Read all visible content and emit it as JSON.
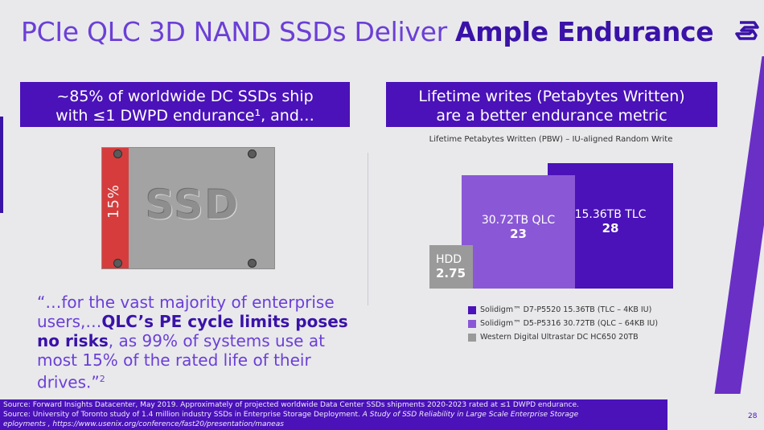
{
  "title": {
    "light": "PCIe QLC 3D NAND SSDs Deliver ",
    "bold": "Ample Endurance"
  },
  "left_header": {
    "line1": "~85% of worldwide DC SSDs ship",
    "line2": "with ≤1 DWPD endurance¹, and…"
  },
  "right_header": {
    "line1": "Lifetime writes (Petabytes Written)",
    "line2": "are a better endurance metric"
  },
  "ssd_illustration": {
    "label": "SSD",
    "percent": "15%"
  },
  "quote": {
    "part1": "“…for the vast majority of enterprise users,…",
    "emph1": "QLC’s PE cycle limits poses no risks",
    "part2": ", as 99% of systems use at most 15% of the rated life of their drives.”",
    "sup": "2"
  },
  "chart_data": {
    "type": "bar",
    "title": "Lifetime Petabytes Written (PBW) – IU-aligned Random Write",
    "series": [
      {
        "name": "15.36TB TLC",
        "value": 28,
        "color": "#4a12b8"
      },
      {
        "name": "30.72TB QLC",
        "value": 23,
        "color": "#8a58d6"
      },
      {
        "name": "HDD",
        "value": 2.75,
        "color": "#9a9a9a"
      }
    ],
    "legend": [
      {
        "label": "Solidigm™ D7-P5520 15.36TB (TLC – 4KB IU)",
        "color": "#4a12b8"
      },
      {
        "label": "Solidigm™ D5-P5316 30.72TB (QLC – 64KB IU)",
        "color": "#8a58d6"
      },
      {
        "label": "Western Digital Ultrastar DC HC650 20TB",
        "color": "#9a9a9a"
      }
    ]
  },
  "footer": {
    "line1": "Source: Forward Insights Datacenter, May 2019. Approximately of projected worldwide Data Center SSDs shipments 2020-2023 rated at ≤1 DWPD endurance.",
    "line2a": "Source: University of Toronto study of 1.4 million industry SSDs in Enterprise Storage Deployment. ",
    "line2b": "A Study of SSD Reliability in Large Scale Enterprise Storage",
    "line3": "eployments , https://www.usenix.org/conference/fast20/presentation/maneas"
  },
  "page_number": "28"
}
